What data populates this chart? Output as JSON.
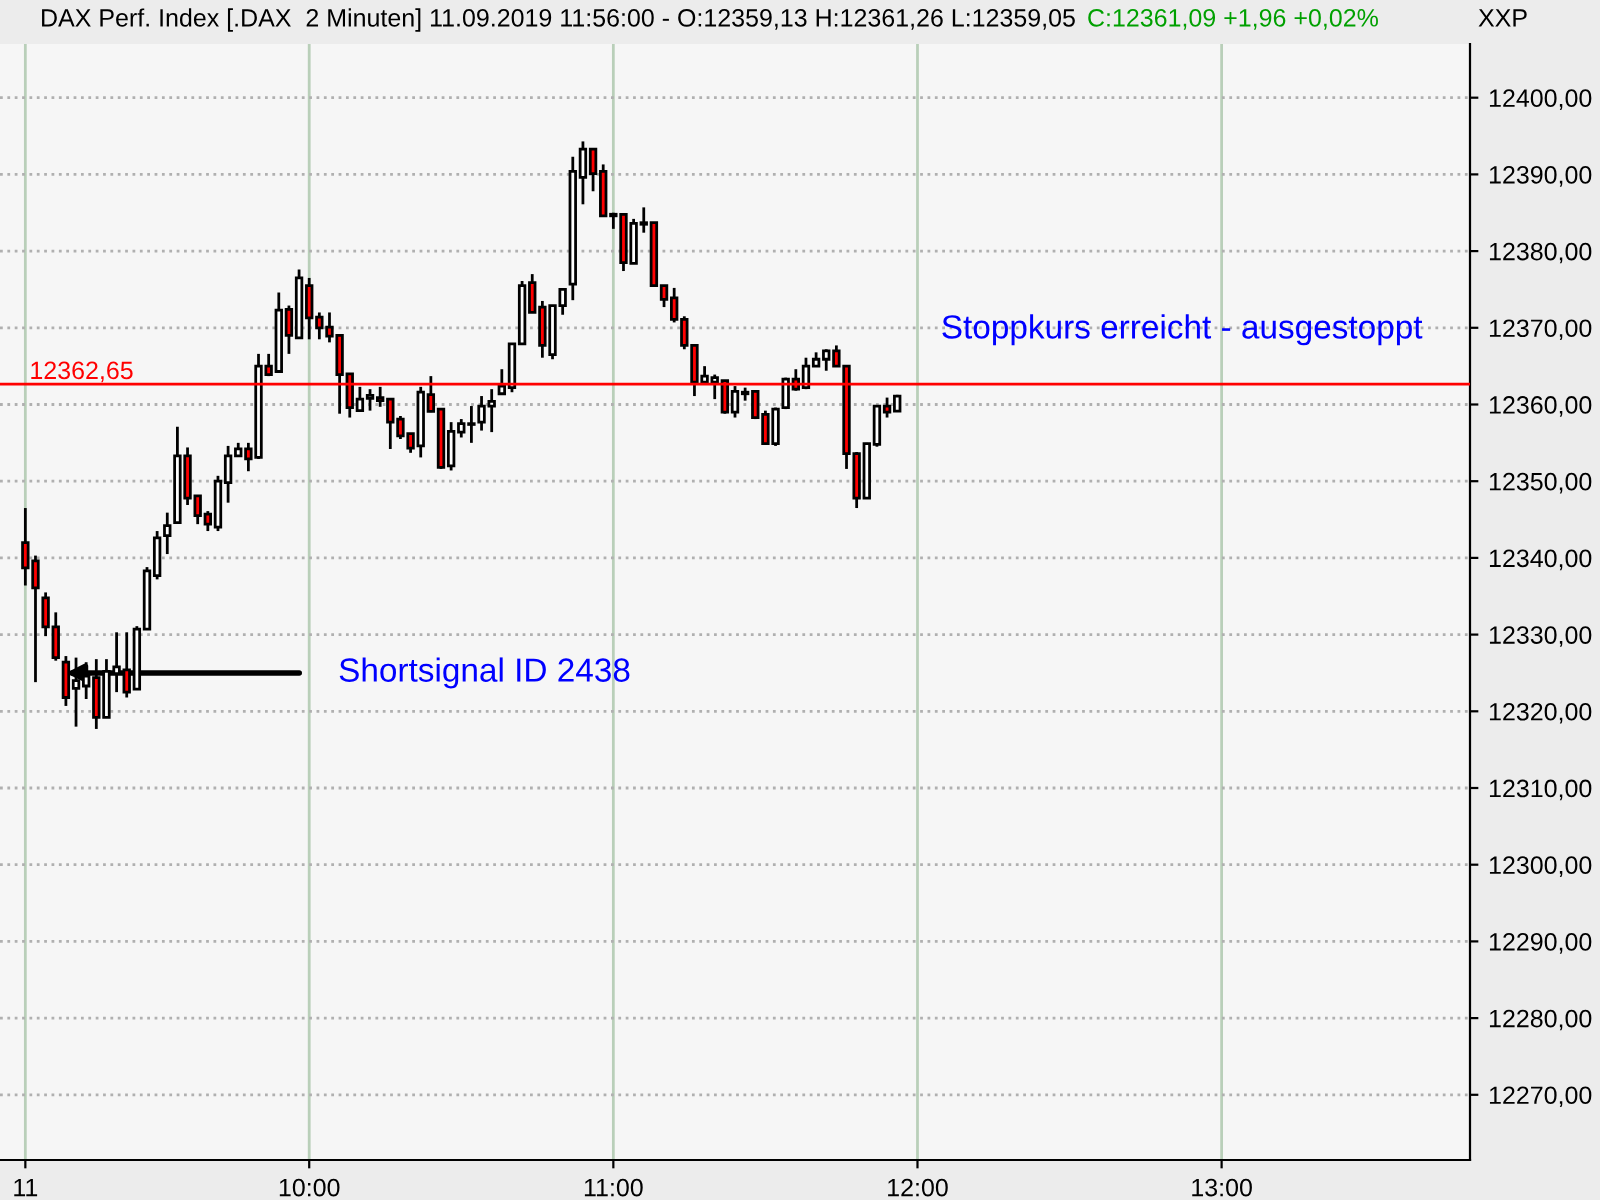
{
  "chart_data": {
    "type": "candlestick",
    "title": "DAX Perf. Index [.DAX  2 Minuten] 11.09.2019 11:56:00 - O:12359,13 H:12361,26 L:12359,05",
    "subtitle": "C:12361,09 +1,96 +0,02%",
    "colors": [
      "#ff0000",
      "#ff0000",
      "#ff0000",
      "#ff0000",
      "#ff0000",
      "#ffffff",
      "#ffffff",
      "#ff0000",
      "#ffffff",
      "#ffffff",
      "#ff0000",
      "#ffffff",
      "#ffffff",
      "#ffffff",
      "#ffffff",
      "#ffffff",
      "#ff0000",
      "#ff0000",
      "#ff0000",
      "#ffffff",
      "#ffffff",
      "#ffffff",
      "#ff0000",
      "#ffffff",
      "#ff0000",
      "#ffffff",
      "#ff0000",
      "#ffffff",
      "#ff0000",
      "#ff0000",
      "#ff0000",
      "#ff0000",
      "#ff0000",
      "#ffffff",
      "#ffffff",
      "#ff0000",
      "#ff0000",
      "#ff0000",
      "#ff0000",
      "#ffffff",
      "#ff0000",
      "#ff0000",
      "#ffffff",
      "#ffffff",
      "#ff0000",
      "#ffffff",
      "#ffffff",
      "#ffffff",
      "#ffffff",
      "#ffffff",
      "#ff0000",
      "#ff0000",
      "#ffffff",
      "#ffffff",
      "#ffffff",
      "#ffffff",
      "#ff0000",
      "#ff0000",
      "#ff0000",
      "#ff0000",
      "#ffffff",
      "#ffffff",
      "#ff0000",
      "#ff0000",
      "#ff0000",
      "#ff0000",
      "#ff0000",
      "#ffffff",
      "#ffffff",
      "#ff0000",
      "#ffffff",
      "#ffffff",
      "#ff0000",
      "#ff0000",
      "#ffffff",
      "#ffffff",
      "#ff0000",
      "#ffffff",
      "#ffffff",
      "#ffffff",
      "#ff0000",
      "#ff0000",
      "#ff0000",
      "#ffffff",
      "#ffffff",
      "#ff0000",
      "#ffffff"
    ],
    "x": [
      "2019-09-11T09:04",
      "2019-09-11T09:06",
      "2019-09-11T09:08",
      "2019-09-11T09:10",
      "2019-09-11T09:12",
      "2019-09-11T09:14",
      "2019-09-11T09:16",
      "2019-09-11T09:18",
      "2019-09-11T09:20",
      "2019-09-11T09:22",
      "2019-09-11T09:24",
      "2019-09-11T09:26",
      "2019-09-11T09:28",
      "2019-09-11T09:30",
      "2019-09-11T09:32",
      "2019-09-11T09:34",
      "2019-09-11T09:36",
      "2019-09-11T09:38",
      "2019-09-11T09:40",
      "2019-09-11T09:42",
      "2019-09-11T09:44",
      "2019-09-11T09:46",
      "2019-09-11T09:48",
      "2019-09-11T09:50",
      "2019-09-11T09:52",
      "2019-09-11T09:54",
      "2019-09-11T09:56",
      "2019-09-11T09:58",
      "2019-09-11T10:00",
      "2019-09-11T10:02",
      "2019-09-11T10:04",
      "2019-09-11T10:06",
      "2019-09-11T10:08",
      "2019-09-11T10:10",
      "2019-09-11T10:12",
      "2019-09-11T10:14",
      "2019-09-11T10:16",
      "2019-09-11T10:18",
      "2019-09-11T10:20",
      "2019-09-11T10:22",
      "2019-09-11T10:24",
      "2019-09-11T10:26",
      "2019-09-11T10:28",
      "2019-09-11T10:30",
      "2019-09-11T10:32",
      "2019-09-11T10:34",
      "2019-09-11T10:36",
      "2019-09-11T10:38",
      "2019-09-11T10:40",
      "2019-09-11T10:42",
      "2019-09-11T10:44",
      "2019-09-11T10:46",
      "2019-09-11T10:48",
      "2019-09-11T10:50",
      "2019-09-11T10:52",
      "2019-09-11T10:54",
      "2019-09-11T10:56",
      "2019-09-11T10:58",
      "2019-09-11T11:00",
      "2019-09-11T11:02",
      "2019-09-11T11:04",
      "2019-09-11T11:06",
      "2019-09-11T11:08",
      "2019-09-11T11:10",
      "2019-09-11T11:12",
      "2019-09-11T11:14",
      "2019-09-11T11:16",
      "2019-09-11T11:18",
      "2019-09-11T11:20",
      "2019-09-11T11:22",
      "2019-09-11T11:24",
      "2019-09-11T11:26",
      "2019-09-11T11:28",
      "2019-09-11T11:30",
      "2019-09-11T11:32",
      "2019-09-11T11:34",
      "2019-09-11T11:36",
      "2019-09-11T11:38",
      "2019-09-11T11:40",
      "2019-09-11T11:42",
      "2019-09-11T11:44",
      "2019-09-11T11:46",
      "2019-09-11T11:48",
      "2019-09-11T11:50",
      "2019-09-11T11:52",
      "2019-09-11T11:54",
      "2019-09-11T11:56"
    ],
    "ohlc": [
      [
        12342.0,
        12346.5,
        12336.4,
        12338.7
      ],
      [
        12339.6,
        12340.3,
        12323.8,
        12336.1
      ],
      [
        12334.8,
        12335.5,
        12329.8,
        12331.0
      ],
      [
        12331.0,
        12332.9,
        12326.6,
        12327.0
      ],
      [
        12326.4,
        12327.2,
        12320.7,
        12321.8
      ],
      [
        12323.0,
        12327.0,
        12318.0,
        12324.0
      ],
      [
        12323.3,
        12326.4,
        12321.6,
        12324.6
      ],
      [
        12324.4,
        12326.8,
        12317.7,
        12319.2
      ],
      [
        12319.2,
        12326.8,
        12319.2,
        12325.2
      ],
      [
        12324.9,
        12330.3,
        12322.5,
        12325.8
      ],
      [
        12325.4,
        12330.3,
        12321.8,
        12322.5
      ],
      [
        12322.9,
        12331.1,
        12322.9,
        12330.7
      ],
      [
        12330.7,
        12338.8,
        12330.7,
        12338.3
      ],
      [
        12337.7,
        12343.5,
        12337.2,
        12342.6
      ],
      [
        12342.9,
        12345.9,
        12340.5,
        12344.2
      ],
      [
        12344.6,
        12357.1,
        12344.6,
        12353.3
      ],
      [
        12353.3,
        12354.4,
        12346.9,
        12347.8
      ],
      [
        12348.1,
        12348.1,
        12344.4,
        12345.5
      ],
      [
        12345.7,
        12346.1,
        12343.5,
        12344.4
      ],
      [
        12344.0,
        12350.7,
        12343.5,
        12350.0
      ],
      [
        12349.8,
        12354.6,
        12347.2,
        12353.3
      ],
      [
        12353.3,
        12355.0,
        12353.3,
        12354.2
      ],
      [
        12354.2,
        12355.0,
        12351.3,
        12352.9
      ],
      [
        12353.1,
        12366.6,
        12352.9,
        12365.0
      ],
      [
        12365.0,
        12366.6,
        12363.7,
        12363.9
      ],
      [
        12364.3,
        12374.6,
        12364.3,
        12372.3
      ],
      [
        12372.4,
        12372.9,
        12366.6,
        12369.0
      ],
      [
        12368.7,
        12377.6,
        12368.7,
        12376.5
      ],
      [
        12375.5,
        12376.5,
        12368.5,
        12371.3
      ],
      [
        12371.4,
        12372.0,
        12368.5,
        12370.0
      ],
      [
        12370.1,
        12372.0,
        12368.1,
        12368.9
      ],
      [
        12369.0,
        12369.0,
        12358.8,
        12363.9
      ],
      [
        12364.0,
        12364.0,
        12358.3,
        12359.6
      ],
      [
        12359.2,
        12362.3,
        12359.2,
        12360.7
      ],
      [
        12360.8,
        12362.0,
        12359.2,
        12361.2
      ],
      [
        12360.9,
        12362.3,
        12359.7,
        12360.5
      ],
      [
        12360.7,
        12360.7,
        12354.2,
        12357.7
      ],
      [
        12358.1,
        12358.5,
        12355.5,
        12355.9
      ],
      [
        12356.2,
        12356.2,
        12353.7,
        12354.3
      ],
      [
        12354.6,
        12362.3,
        12353.1,
        12361.6
      ],
      [
        12361.3,
        12363.7,
        12359.0,
        12359.1
      ],
      [
        12359.4,
        12359.4,
        12351.6,
        12351.8
      ],
      [
        12352.0,
        12357.7,
        12351.4,
        12356.5
      ],
      [
        12356.4,
        12358.1,
        12355.7,
        12357.5
      ],
      [
        12357.5,
        12359.8,
        12355.0,
        12357.4
      ],
      [
        12357.7,
        12361.1,
        12356.6,
        12359.8
      ],
      [
        12359.8,
        12362.0,
        12356.4,
        12360.4
      ],
      [
        12361.4,
        12364.6,
        12361.4,
        12362.4
      ],
      [
        12362.2,
        12367.9,
        12361.6,
        12367.9
      ],
      [
        12367.9,
        12376.1,
        12367.9,
        12375.5
      ],
      [
        12375.9,
        12377.0,
        12372.0,
        12372.0
      ],
      [
        12372.7,
        12373.5,
        12366.1,
        12367.7
      ],
      [
        12366.5,
        12372.9,
        12365.9,
        12372.9
      ],
      [
        12372.9,
        12375.0,
        12371.7,
        12375.0
      ],
      [
        12375.7,
        12392.3,
        12373.6,
        12390.4
      ],
      [
        12389.6,
        12394.3,
        12386.1,
        12393.3
      ],
      [
        12393.3,
        12393.3,
        12387.8,
        12390.1
      ],
      [
        12390.4,
        12391.3,
        12384.6,
        12384.6
      ],
      [
        12384.8,
        12385.0,
        12382.9,
        12384.6
      ],
      [
        12384.8,
        12384.8,
        12377.4,
        12378.5
      ],
      [
        12378.4,
        12384.2,
        12378.4,
        12383.6
      ],
      [
        12383.5,
        12385.7,
        12382.4,
        12383.7
      ],
      [
        12383.7,
        12383.7,
        12375.5,
        12375.5
      ],
      [
        12375.5,
        12375.5,
        12372.7,
        12373.7
      ],
      [
        12373.9,
        12375.2,
        12370.7,
        12371.1
      ],
      [
        12371.1,
        12371.5,
        12367.2,
        12367.7
      ],
      [
        12367.7,
        12367.7,
        12361.1,
        12362.9
      ],
      [
        12362.9,
        12365.0,
        12362.9,
        12363.7
      ],
      [
        12362.9,
        12363.9,
        12360.7,
        12363.5
      ],
      [
        12363.1,
        12363.1,
        12358.8,
        12359.0
      ],
      [
        12359.0,
        12362.4,
        12358.3,
        12361.7
      ],
      [
        12361.4,
        12362.2,
        12360.5,
        12361.6
      ],
      [
        12361.7,
        12361.7,
        12358.1,
        12358.3
      ],
      [
        12358.7,
        12359.2,
        12354.9,
        12354.9
      ],
      [
        12354.9,
        12359.6,
        12354.6,
        12359.4
      ],
      [
        12359.6,
        12363.5,
        12359.4,
        12363.3
      ],
      [
        12363.3,
        12364.6,
        12361.8,
        12362.0
      ],
      [
        12362.2,
        12366.1,
        12362.0,
        12365.0
      ],
      [
        12365.0,
        12366.8,
        12364.9,
        12365.9
      ],
      [
        12365.9,
        12367.2,
        12364.4,
        12367.0
      ],
      [
        12367.0,
        12367.7,
        12365.0,
        12365.0
      ],
      [
        12365.0,
        12365.0,
        12351.6,
        12353.6
      ],
      [
        12353.6,
        12353.8,
        12346.5,
        12347.8
      ],
      [
        12347.8,
        12355.0,
        12347.7,
        12354.9
      ],
      [
        12354.8,
        12359.8,
        12354.5,
        12359.8
      ],
      [
        12359.8,
        12360.9,
        12358.3,
        12359.0
      ],
      [
        12359.13,
        12361.26,
        12359.05,
        12361.09
      ]
    ],
    "xlim": [
      "2019-09-11T08:59",
      "2019-09-11T13:49"
    ],
    "xticks": [
      {
        "value": "2019-09-11T09:04",
        "label": "11"
      },
      {
        "value": "2019-09-11T10:00",
        "label": "10:00"
      },
      {
        "value": "2019-09-11T11:00",
        "label": "11:00"
      },
      {
        "value": "2019-09-11T12:00",
        "label": "12:00"
      },
      {
        "value": "2019-09-11T13:00",
        "label": "13:00"
      }
    ],
    "ylim": [
      12261.5,
      12407
    ],
    "yticks": [
      {
        "value": 12270,
        "label": "12270,00"
      },
      {
        "value": 12280,
        "label": "12280,00"
      },
      {
        "value": 12290,
        "label": "12290,00"
      },
      {
        "value": 12300,
        "label": "12300,00"
      },
      {
        "value": 12310,
        "label": "12310,00"
      },
      {
        "value": 12320,
        "label": "12320,00"
      },
      {
        "value": 12330,
        "label": "12330,00"
      },
      {
        "value": 12340,
        "label": "12340,00"
      },
      {
        "value": 12350,
        "label": "12350,00"
      },
      {
        "value": 12360,
        "label": "12360,00"
      },
      {
        "value": 12370,
        "label": "12370,00"
      },
      {
        "value": 12380,
        "label": "12380,00"
      },
      {
        "value": 12390,
        "label": "12390,00"
      },
      {
        "value": 12400,
        "label": "12400,00"
      }
    ],
    "grid": true,
    "ref_lines": [
      {
        "axis": "y",
        "value": 12362.65,
        "label": "12362,65",
        "color": "#ff0000"
      }
    ],
    "annotations": [
      {
        "text": "Shortsignal ID 2438",
        "x": "2019-09-11T09:12",
        "y": 12325
      },
      "Stoppkurs erreicht - ausgestoppt",
      "XXP"
    ]
  }
}
